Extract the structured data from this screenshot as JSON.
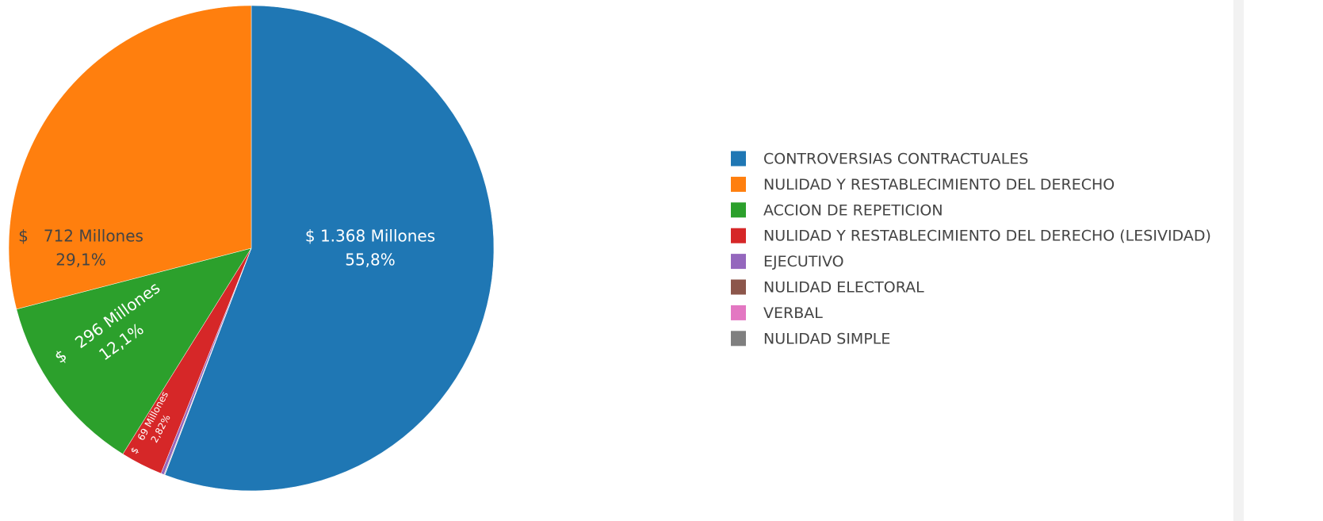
{
  "chart_data": {
    "type": "pie",
    "categories": [
      "CONTROVERSIAS CONTRACTUALES",
      "NULIDAD Y RESTABLECIMIENTO DEL DERECHO",
      "ACCION DE REPETICION",
      "NULIDAD Y RESTABLECIMIENTO DEL DERECHO (LESIVIDAD)",
      "EJECUTIVO",
      "NULIDAD ELECTORAL",
      "VERBAL",
      "NULIDAD SIMPLE"
    ],
    "values": [
      1368,
      712,
      296,
      69,
      5,
      1,
      0.5,
      0.1
    ],
    "value_labels": [
      "$ 1.368 Millones",
      "$   712 Millones",
      "$   296 Millones",
      "$   69 Millones",
      null,
      null,
      null,
      null
    ],
    "percents": [
      55.8,
      29.1,
      12.1,
      2.82,
      null,
      null,
      null,
      null
    ],
    "percent_labels": [
      "55,8%",
      "29,1%",
      "12,1%",
      "2,82%",
      null,
      null,
      null,
      null
    ],
    "colors": [
      "#1f77b4",
      "#ff7f0e",
      "#2ca02c",
      "#d62728",
      "#9467bd",
      "#8c564b",
      "#e377c2",
      "#7f7f7f"
    ],
    "legend": "right"
  }
}
